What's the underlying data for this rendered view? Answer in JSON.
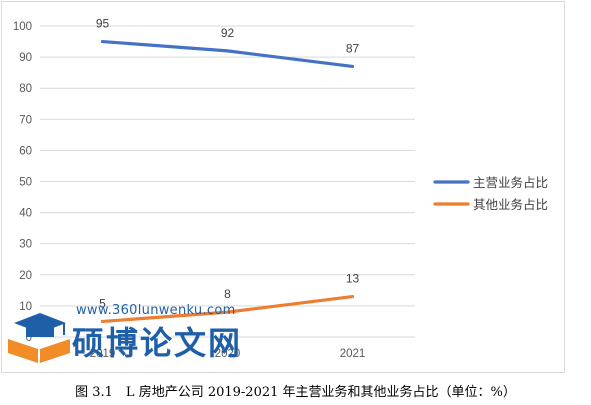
{
  "chart_data": {
    "type": "line",
    "title": "",
    "xlabel": "",
    "ylabel": "",
    "categories": [
      "2019",
      "2020",
      "2021"
    ],
    "ylim": [
      0,
      100
    ],
    "yticks": [
      0,
      10,
      20,
      30,
      40,
      50,
      60,
      70,
      80,
      90,
      100
    ],
    "grid": true,
    "legend_position": "right",
    "series": [
      {
        "name": "主营业务占比",
        "values": [
          95,
          92,
          87
        ],
        "color": "#4472c4"
      },
      {
        "name": "其他业务占比",
        "values": [
          5,
          8,
          13
        ],
        "color": "#ed7d31"
      }
    ]
  },
  "caption": "图 3.1　L 房地产公司 2019-2021 年主营业务和其他业务占比（单位：%）",
  "watermark": {
    "url": "www.360lunwenku.com",
    "name": "硕博论文网",
    "color": "#1f5fa8"
  }
}
